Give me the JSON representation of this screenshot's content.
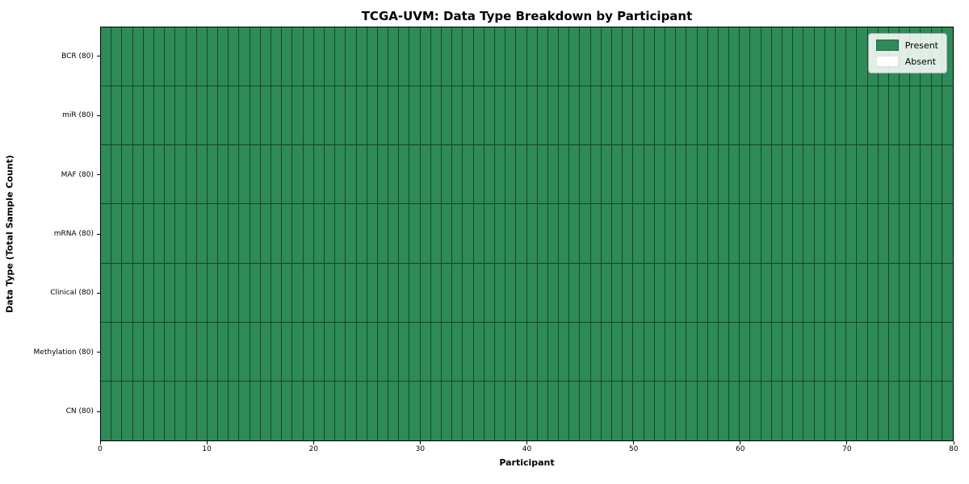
{
  "chart_data": {
    "type": "heatmap",
    "title": "TCGA-UVM: Data Type Breakdown by Participant",
    "xlabel": "Participant",
    "ylabel": "Data Type (Total Sample Count)",
    "xlim": [
      0,
      80
    ],
    "x_ticks": [
      0,
      10,
      20,
      30,
      40,
      50,
      60,
      70,
      80
    ],
    "n_participants": 80,
    "rows": [
      {
        "label": "BCR (80)",
        "present_count": 80,
        "absent_count": 0
      },
      {
        "label": "miR (80)",
        "present_count": 80,
        "absent_count": 0
      },
      {
        "label": "MAF (80)",
        "present_count": 80,
        "absent_count": 0
      },
      {
        "label": "mRNA (80)",
        "present_count": 80,
        "absent_count": 0
      },
      {
        "label": "Clinical (80)",
        "present_count": 80,
        "absent_count": 0
      },
      {
        "label": "Methylation (80)",
        "present_count": 80,
        "absent_count": 0
      },
      {
        "label": "CN (80)",
        "present_count": 80,
        "absent_count": 0
      }
    ],
    "all_cells_state": "present",
    "legend": {
      "position": "upper right",
      "entries": [
        {
          "label": "Present",
          "color": "#2e8b57",
          "state": "present"
        },
        {
          "label": "Absent",
          "color": "#ffffff",
          "state": "absent"
        }
      ]
    },
    "colors": {
      "present": "#2e8b57",
      "absent": "#ffffff",
      "cell_edge": "rgba(0,0,0,0.50)",
      "spine": "#000000",
      "background": "#ffffff"
    },
    "grid": "per-cell borders, no background gridlines"
  }
}
